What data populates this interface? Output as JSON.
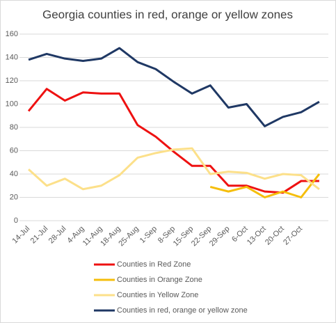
{
  "chart_data": {
    "type": "line",
    "title": "Georgia counties in red, orange or yellow zones",
    "categories": [
      "14-Jul",
      "21-Jul",
      "28-Jul",
      "4-Aug",
      "11-Aug",
      "18-Aug",
      "25-Aug",
      "1-Sep",
      "8-Sep",
      "15-Sep",
      "22-Sep",
      "29-Sep",
      "6-Oct",
      "13-Oct",
      "20-Oct",
      "27-Oct",
      null
    ],
    "series": [
      {
        "name": "Counties in Red Zone",
        "color": "#ee1111",
        "values": [
          94,
          113,
          103,
          110,
          109,
          109,
          82,
          72,
          59,
          47,
          47,
          30,
          30,
          25,
          24,
          34,
          34
        ]
      },
      {
        "name": "Counties in Orange Zone",
        "color": "#f5be0b",
        "values": [
          null,
          null,
          null,
          null,
          null,
          null,
          null,
          null,
          null,
          null,
          29,
          25,
          29,
          20,
          25,
          20,
          40
        ]
      },
      {
        "name": "Counties in Yellow Zone",
        "color": "#fce08a",
        "values": [
          44,
          30,
          36,
          27,
          30,
          39,
          54,
          58,
          61,
          62,
          40,
          42,
          41,
          36,
          40,
          39,
          27
        ]
      },
      {
        "name": "Counties in red, orange or yellow zone",
        "color": "#1f3864",
        "values": [
          138,
          143,
          139,
          137,
          139,
          148,
          136,
          130,
          119,
          109,
          116,
          97,
          100,
          81,
          89,
          93,
          102
        ]
      }
    ],
    "ylim": [
      0,
      160
    ],
    "yticks": [
      0,
      20,
      40,
      60,
      80,
      100,
      120,
      140,
      160
    ],
    "grid": true
  }
}
